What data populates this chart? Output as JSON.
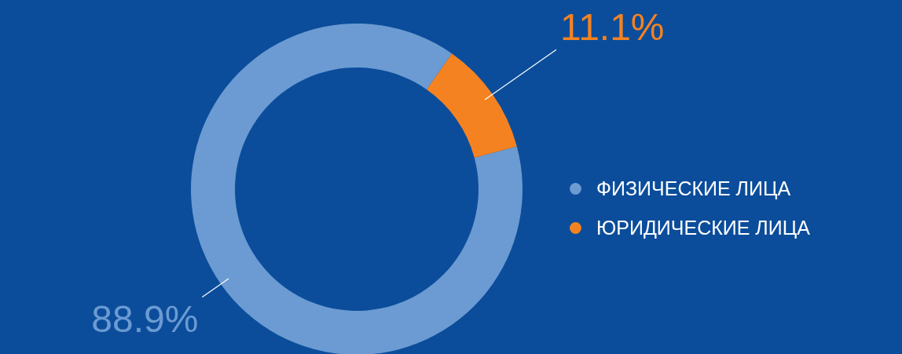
{
  "chart_data": {
    "type": "donut",
    "categories": [
      "ФИЗИЧЕСКИЕ ЛИЦА",
      "ЮРИДИЧЕСКИЕ ЛИЦА"
    ],
    "values": [
      88.9,
      11.1
    ],
    "colors": [
      "#6b9bd2",
      "#f58220"
    ],
    "value_labels": [
      "88.9%",
      "11.1%"
    ],
    "legend": "right"
  }
}
